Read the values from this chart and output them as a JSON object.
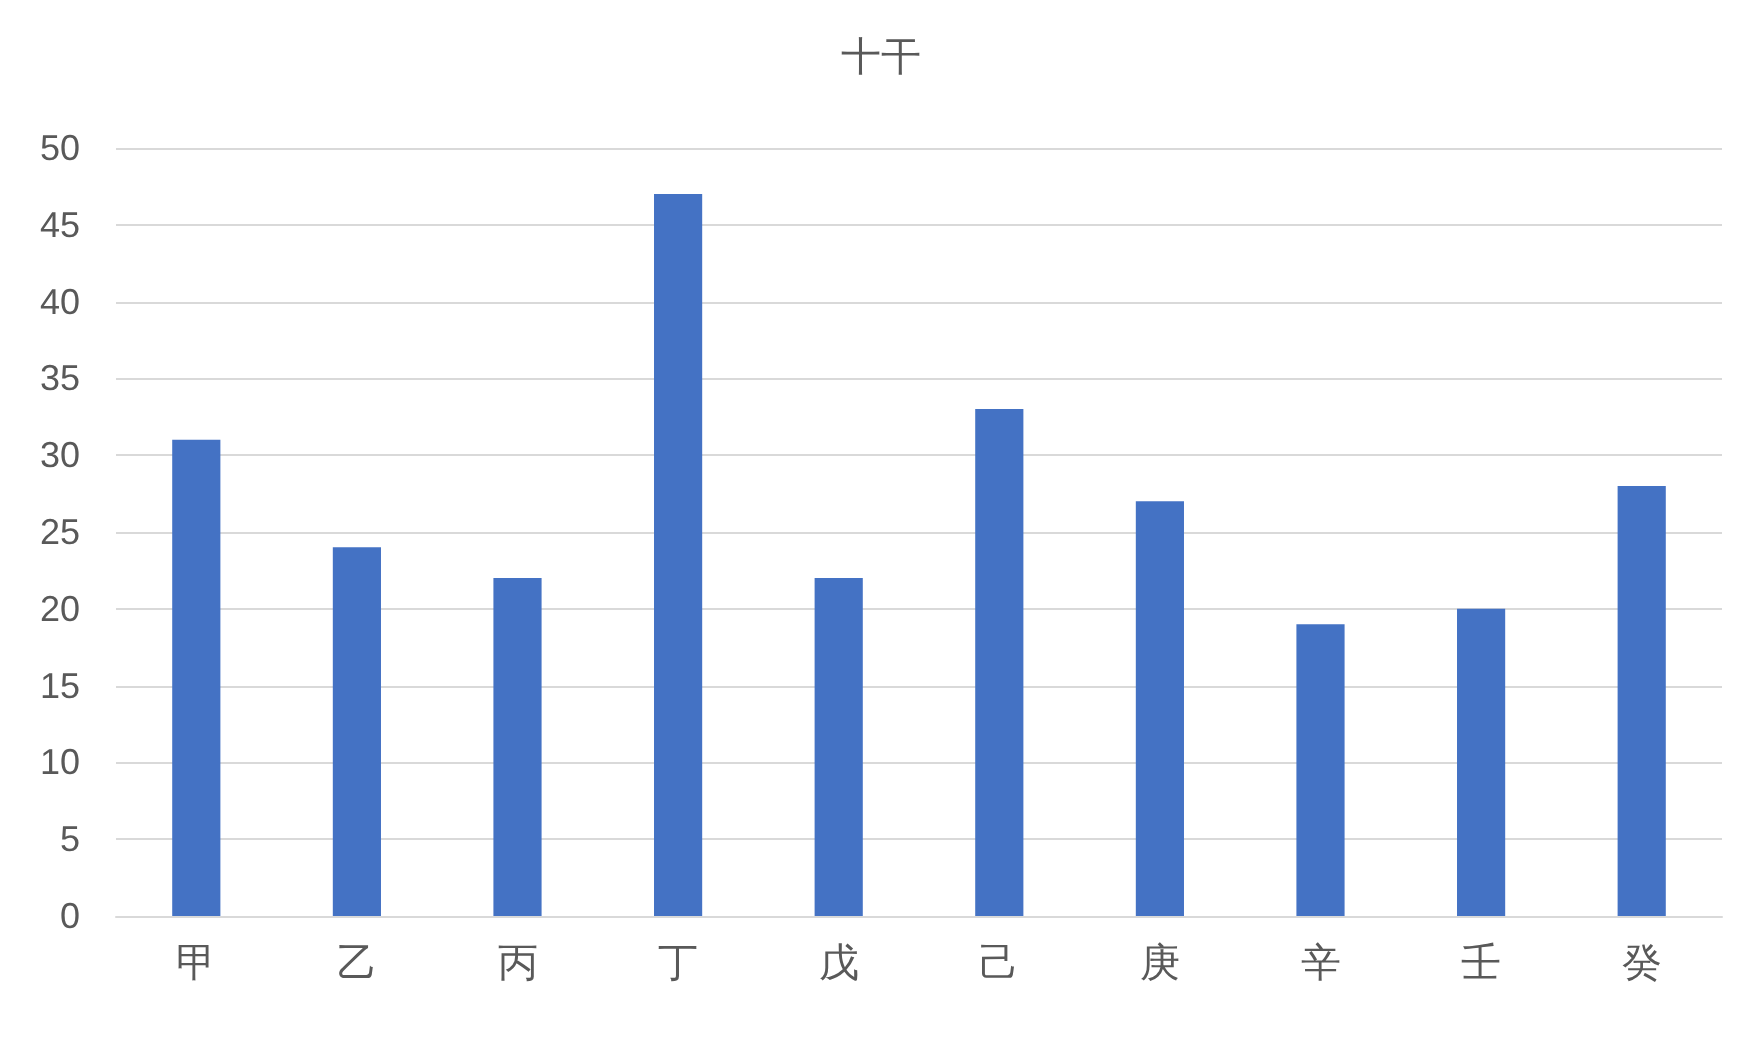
{
  "chart_data": {
    "type": "bar",
    "title": "十干",
    "categories": [
      "甲",
      "乙",
      "丙",
      "丁",
      "戊",
      "己",
      "庚",
      "辛",
      "壬",
      "癸"
    ],
    "values": [
      31,
      24,
      22,
      47,
      22,
      33,
      27,
      19,
      20,
      28
    ],
    "color": "#4472c4",
    "ylim": [
      0,
      50
    ],
    "yticks": [
      0,
      5,
      10,
      15,
      20,
      25,
      30,
      35,
      40,
      45,
      50
    ],
    "grid": "y"
  }
}
